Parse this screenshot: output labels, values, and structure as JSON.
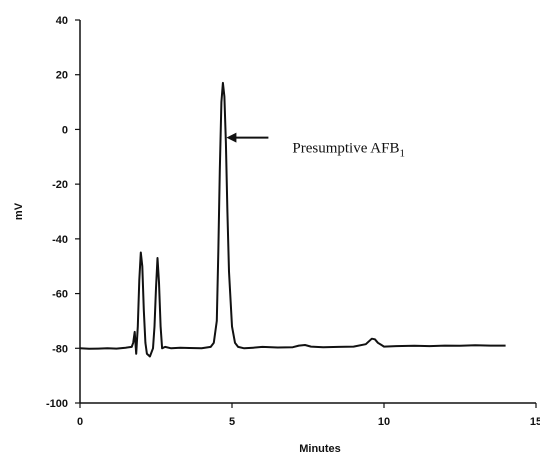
{
  "chart_data": {
    "type": "line",
    "xlabel": "Minutes",
    "ylabel": "mV",
    "xlim": [
      0,
      15
    ],
    "ylim": [
      -100,
      40
    ],
    "x_ticks": [
      0,
      5,
      10,
      15
    ],
    "y_ticks": [
      40,
      20,
      0,
      -20,
      -40,
      -60,
      -80,
      -100
    ],
    "grid": false,
    "legend": "none",
    "series": [
      {
        "x": [
          0,
          0.3,
          0.6,
          0.9,
          1.2,
          1.5,
          1.7,
          1.75,
          1.8,
          1.85,
          1.9,
          1.95,
          2.0,
          2.05,
          2.1,
          2.15,
          2.2,
          2.3,
          2.4,
          2.45,
          2.5,
          2.55,
          2.6,
          2.65,
          2.7,
          2.8,
          3.0,
          3.3,
          3.6,
          4.0,
          4.3,
          4.4,
          4.5,
          4.55,
          4.6,
          4.65,
          4.7,
          4.75,
          4.8,
          4.85,
          4.9,
          5.0,
          5.1,
          5.2,
          5.4,
          5.7,
          6.0,
          6.5,
          7.0,
          7.2,
          7.4,
          7.6,
          8.0,
          8.5,
          9.0,
          9.4,
          9.6,
          9.7,
          9.8,
          10.0,
          10.4,
          11.0,
          11.5,
          12.0,
          12.5,
          13.0,
          13.5,
          14.0
        ],
        "y": [
          -80,
          -80.2,
          -80.1,
          -80,
          -80.1,
          -79.8,
          -79.5,
          -78,
          -74,
          -82,
          -72,
          -55,
          -45,
          -50,
          -66,
          -78,
          -82,
          -83,
          -80,
          -72,
          -58,
          -47,
          -56,
          -72,
          -80,
          -79.5,
          -80,
          -79.8,
          -79.9,
          -80,
          -79.5,
          -78,
          -70,
          -45,
          -15,
          10,
          17,
          12,
          -5,
          -30,
          -52,
          -72,
          -78,
          -79.5,
          -80,
          -79.8,
          -79.5,
          -79.7,
          -79.6,
          -79,
          -78.8,
          -79.4,
          -79.6,
          -79.5,
          -79.4,
          -78.5,
          -76.5,
          -76.7,
          -78,
          -79.4,
          -79.2,
          -79.1,
          -79.2,
          -79,
          -79.1,
          -78.9,
          -79,
          -79
        ]
      }
    ],
    "annotation": {
      "text": "Presumptive AFB",
      "subscript": "1",
      "arrow_target": [
        4.75,
        -3
      ]
    }
  }
}
